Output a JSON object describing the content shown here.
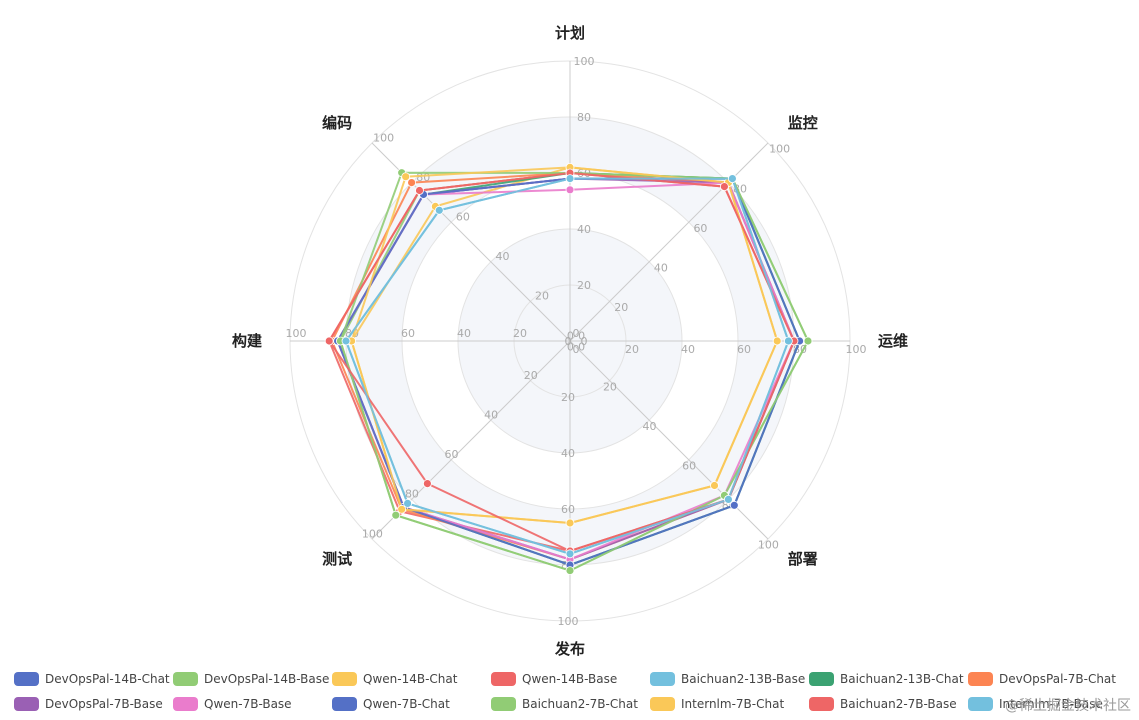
{
  "chart_data": {
    "type": "radar",
    "indicators": [
      "计划",
      "监控",
      "运维",
      "部署",
      "发布",
      "测试",
      "构建",
      "编码"
    ],
    "max": 100,
    "rings": [
      20,
      40,
      60,
      80,
      100
    ],
    "legend_position": "bottom",
    "series": [
      {
        "name": "DevOpsPal-14B-Chat",
        "color": "#5470c6",
        "values": [
          58,
          82,
          82,
          83,
          80,
          84,
          83,
          74
        ]
      },
      {
        "name": "DevOpsPal-14B-Base",
        "color": "#91cc75",
        "values": [
          60,
          82,
          85,
          78,
          82,
          88,
          82,
          76
        ]
      },
      {
        "name": "Qwen-14B-Chat",
        "color": "#fac858",
        "values": [
          62,
          80,
          74,
          73,
          65,
          85,
          78,
          68
        ]
      },
      {
        "name": "Qwen-14B-Base",
        "color": "#ee6666",
        "values": [
          60,
          78,
          80,
          80,
          75,
          86,
          86,
          76
        ]
      },
      {
        "name": "Baichuan2-13B-Base",
        "color": "#73c0de",
        "values": [
          58,
          82,
          78,
          80,
          76,
          82,
          80,
          66
        ]
      },
      {
        "name": "Baichuan2-13B-Chat",
        "color": "#3ba272",
        "values": [
          60,
          82,
          82,
          83,
          80,
          84,
          83,
          74
        ]
      },
      {
        "name": "DevOpsPal-7B-Chat",
        "color": "#fc8452",
        "values": [
          60,
          80,
          80,
          80,
          78,
          85,
          85,
          80
        ]
      },
      {
        "name": "DevOpsPal-7B-Base",
        "color": "#9a60b4",
        "values": [
          58,
          80,
          80,
          80,
          78,
          84,
          83,
          74
        ]
      },
      {
        "name": "Qwen-7B-Base",
        "color": "#ea7ccc",
        "values": [
          54,
          80,
          80,
          78,
          78,
          84,
          83,
          74
        ]
      },
      {
        "name": "Qwen-7B-Chat",
        "color": "#5470c6",
        "values": [
          58,
          82,
          82,
          83,
          80,
          84,
          83,
          74
        ]
      },
      {
        "name": "Baichuan2-7B-Chat",
        "color": "#91cc75",
        "values": [
          60,
          82,
          85,
          78,
          82,
          88,
          82,
          85
        ]
      },
      {
        "name": "Internlm-7B-Chat",
        "color": "#fac858",
        "values": [
          62,
          80,
          74,
          73,
          65,
          85,
          78,
          83
        ]
      },
      {
        "name": "Baichuan2-7B-Base",
        "color": "#ee6666",
        "values": [
          60,
          78,
          80,
          80,
          75,
          72,
          86,
          76
        ]
      },
      {
        "name": "Internlm-7B-Base",
        "color": "#73c0de",
        "values": [
          58,
          82,
          78,
          80,
          76,
          82,
          80,
          66
        ]
      }
    ]
  },
  "watermark": "@稀土掘金技术社区"
}
